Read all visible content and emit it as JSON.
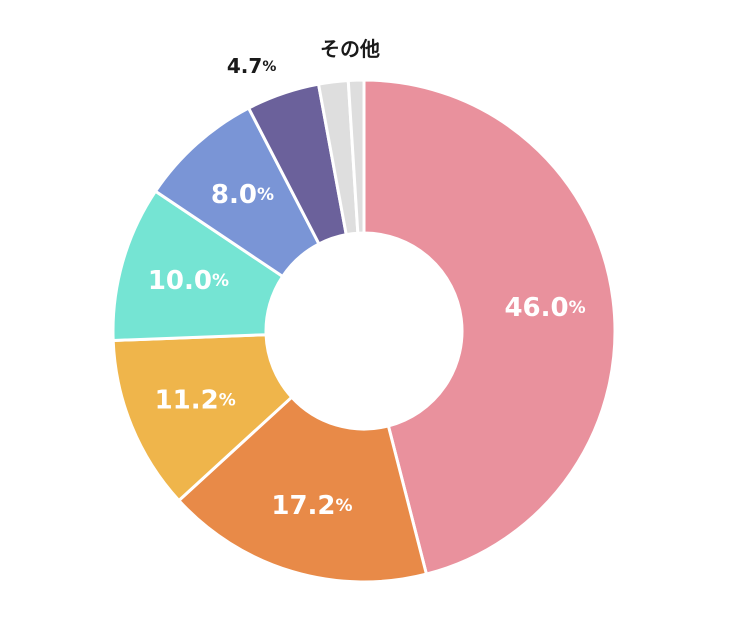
{
  "chart_data": {
    "type": "pie",
    "donut": true,
    "categories": [
      "",
      "",
      "",
      "",
      "",
      "",
      "",
      ""
    ],
    "values": [
      46.0,
      17.2,
      11.2,
      10.0,
      8.0,
      4.7,
      1.9,
      1.0
    ],
    "labels": [
      "46.0",
      "17.2",
      "11.2",
      "10.0",
      "8.0",
      "4.7",
      "",
      ""
    ],
    "unit": "%",
    "other_label": "その他",
    "colors": [
      "#e9919d",
      "#e88a48",
      "#efb54b",
      "#75e4d3",
      "#7a95d6",
      "#6b619b",
      "#dedede",
      "#dedede"
    ],
    "label_color_inside": "#ffffff",
    "label_color_outside": "#1a1a1a"
  }
}
